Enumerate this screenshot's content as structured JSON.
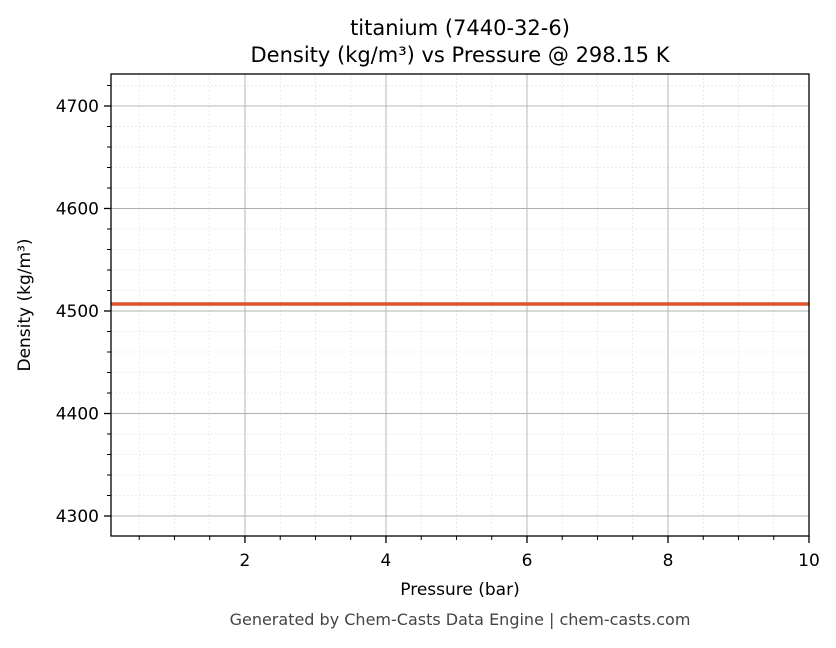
{
  "chart_data": {
    "type": "line",
    "title": "titanium (7440-32-6)",
    "subtitle": "Density (kg/m³) vs Pressure @ 298.15 K",
    "xlabel": "Pressure (bar)",
    "ylabel": "Density (kg/m³)",
    "xlim": [
      0.1,
      10
    ],
    "ylim": [
      4280.5,
      4731.2
    ],
    "xticks": [
      2,
      4,
      6,
      8,
      10
    ],
    "yticks": [
      4300,
      4400,
      4500,
      4600,
      4700
    ],
    "x_minor_step": 0.5,
    "y_minor_step": 20,
    "grid": true,
    "series": [
      {
        "x": [
          0.1,
          10
        ],
        "y": [
          4506.8,
          4506.8
        ],
        "color": "#d9532b"
      }
    ]
  },
  "footer": "Generated by Chem-Casts Data Engine | chem-casts.com"
}
